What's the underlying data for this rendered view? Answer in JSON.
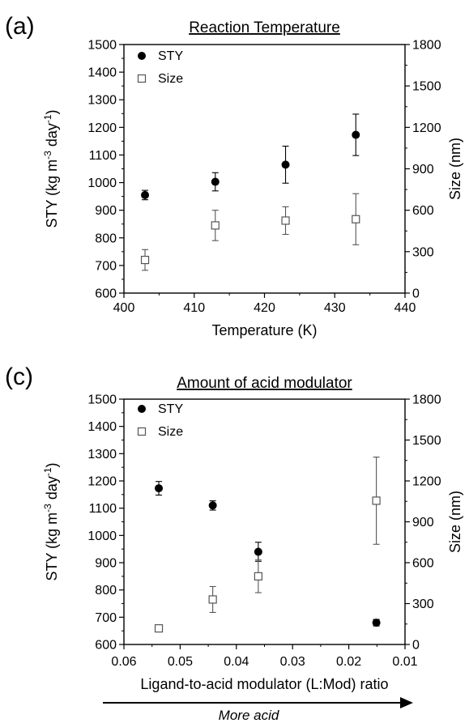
{
  "chart_data": [
    {
      "panel": "(a)",
      "type": "scatter",
      "title": "Reaction Temperature",
      "xlabel": "Temperature (K)",
      "ylabel": "STY (kg m-3 day-1)",
      "ylabel_parts": [
        "STY (kg m",
        "-3",
        " day",
        "-1",
        ")"
      ],
      "y2label": "Size (nm)",
      "xlim": [
        400,
        440
      ],
      "ylim": [
        600,
        1500
      ],
      "y2lim": [
        0,
        1800
      ],
      "xticks": [
        400,
        410,
        420,
        430,
        440
      ],
      "yticks": [
        600,
        700,
        800,
        900,
        1000,
        1100,
        1200,
        1300,
        1400,
        1500
      ],
      "y2ticks": [
        0,
        300,
        600,
        900,
        1200,
        1500,
        1800
      ],
      "legend": [
        "STY",
        "Size"
      ],
      "legend_position": "top-left",
      "series": [
        {
          "name": "STY",
          "axis": "left",
          "marker": "filled-circle",
          "x": [
            403,
            413,
            423,
            433
          ],
          "y": [
            955,
            1003,
            1065,
            1173
          ],
          "err": [
            17,
            33,
            67,
            75
          ]
        },
        {
          "name": "Size",
          "axis": "right",
          "marker": "open-square",
          "x": [
            403,
            413,
            423,
            433
          ],
          "y": [
            240,
            490,
            525,
            535
          ],
          "err": [
            75,
            110,
            100,
            185
          ]
        }
      ]
    },
    {
      "panel": "(c)",
      "type": "scatter",
      "title": "Amount of acid modulator",
      "xlabel": "Ligand-to-acid modulator (L:Mod) ratio",
      "ylabel": "STY (kg m-3 day-1)",
      "ylabel_parts": [
        "STY (kg m",
        "-3",
        " day",
        "-1",
        ")"
      ],
      "y2label": "Size (nm)",
      "xlim": [
        0.06,
        0.01
      ],
      "x_reversed": true,
      "ylim": [
        600,
        1500
      ],
      "y2lim": [
        0,
        1800
      ],
      "xticks": [
        "0.06",
        "0.05",
        "0.04",
        "0.03",
        "0.02",
        "0.01"
      ],
      "yticks": [
        600,
        700,
        800,
        900,
        1000,
        1100,
        1200,
        1300,
        1400,
        1500
      ],
      "y2ticks": [
        0,
        300,
        600,
        900,
        1200,
        1500,
        1800
      ],
      "legend": [
        "STY",
        "Size"
      ],
      "legend_position": "top-left",
      "annotation": "More acid",
      "series": [
        {
          "name": "STY",
          "axis": "left",
          "marker": "filled-circle",
          "x": [
            0.0538,
            0.0442,
            0.0361,
            0.0151
          ],
          "y": [
            1173,
            1110,
            940,
            680
          ],
          "err": [
            25,
            17,
            35,
            12
          ]
        },
        {
          "name": "Size",
          "axis": "right",
          "marker": "open-square",
          "x": [
            0.0538,
            0.0442,
            0.0361,
            0.0151
          ],
          "y": [
            118,
            330,
            500,
            1055
          ],
          "err": [
            10,
            95,
            120,
            320
          ]
        }
      ]
    }
  ]
}
